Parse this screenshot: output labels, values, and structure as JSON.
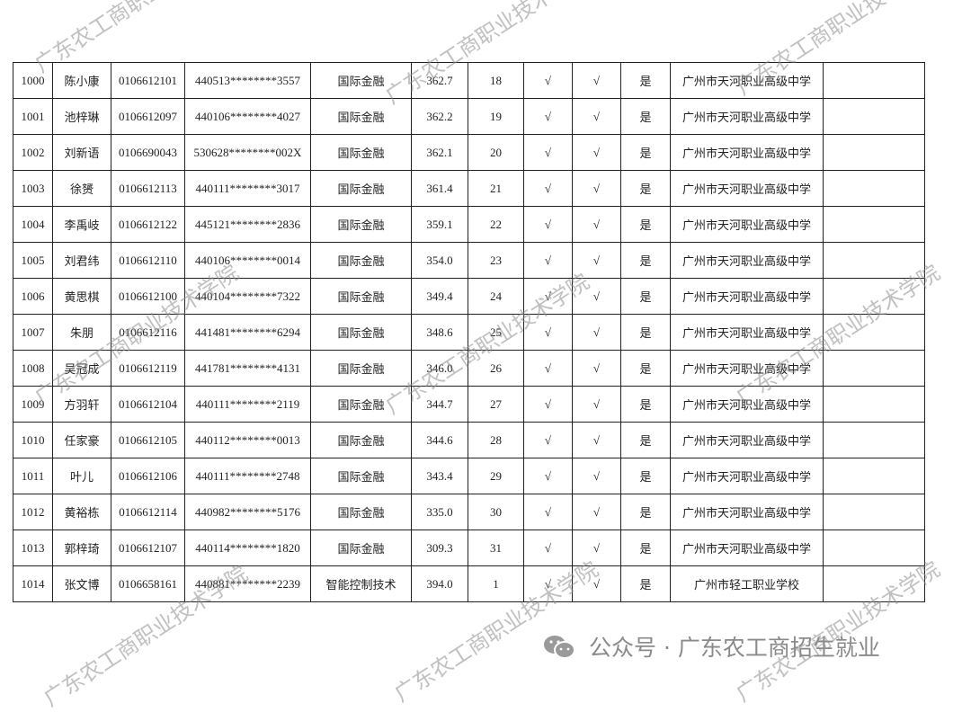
{
  "table": {
    "rows": [
      [
        "1000",
        "陈小康",
        "0106612101",
        "440513********3557",
        "国际金融",
        "362.7",
        "18",
        "√",
        "√",
        "是",
        "广州市天河职业高级中学"
      ],
      [
        "1001",
        "池梓琳",
        "0106612097",
        "440106********4027",
        "国际金融",
        "362.2",
        "19",
        "√",
        "√",
        "是",
        "广州市天河职业高级中学"
      ],
      [
        "1002",
        "刘新语",
        "0106690043",
        "530628********002X",
        "国际金融",
        "362.1",
        "20",
        "√",
        "√",
        "是",
        "广州市天河职业高级中学"
      ],
      [
        "1003",
        "徐赟",
        "0106612113",
        "440111********3017",
        "国际金融",
        "361.4",
        "21",
        "√",
        "√",
        "是",
        "广州市天河职业高级中学"
      ],
      [
        "1004",
        "李禹岐",
        "0106612122",
        "445121********2836",
        "国际金融",
        "359.1",
        "22",
        "√",
        "√",
        "是",
        "广州市天河职业高级中学"
      ],
      [
        "1005",
        "刘君纬",
        "0106612110",
        "440106********0014",
        "国际金融",
        "354.0",
        "23",
        "√",
        "√",
        "是",
        "广州市天河职业高级中学"
      ],
      [
        "1006",
        "黄思棋",
        "0106612100",
        "440104********7322",
        "国际金融",
        "349.4",
        "24",
        "√",
        "√",
        "是",
        "广州市天河职业高级中学"
      ],
      [
        "1007",
        "朱朋",
        "0106612116",
        "441481********6294",
        "国际金融",
        "348.6",
        "25",
        "√",
        "√",
        "是",
        "广州市天河职业高级中学"
      ],
      [
        "1008",
        "吴冠成",
        "0106612119",
        "441781********4131",
        "国际金融",
        "346.0",
        "26",
        "√",
        "√",
        "是",
        "广州市天河职业高级中学"
      ],
      [
        "1009",
        "方羽轩",
        "0106612104",
        "440111********2119",
        "国际金融",
        "344.7",
        "27",
        "√",
        "√",
        "是",
        "广州市天河职业高级中学"
      ],
      [
        "1010",
        "任家豪",
        "0106612105",
        "440112********0013",
        "国际金融",
        "344.6",
        "28",
        "√",
        "√",
        "是",
        "广州市天河职业高级中学"
      ],
      [
        "1011",
        "叶儿",
        "0106612106",
        "440111********2748",
        "国际金融",
        "343.4",
        "29",
        "√",
        "√",
        "是",
        "广州市天河职业高级中学"
      ],
      [
        "1012",
        "黄裕栋",
        "0106612114",
        "440982********5176",
        "国际金融",
        "335.0",
        "30",
        "√",
        "√",
        "是",
        "广州市天河职业高级中学"
      ],
      [
        "1013",
        "郭梓琦",
        "0106612107",
        "440114********1820",
        "国际金融",
        "309.3",
        "31",
        "√",
        "√",
        "是",
        "广州市天河职业高级中学"
      ],
      [
        "1014",
        "张文博",
        "0106658161",
        "440881********2239",
        "智能控制技术",
        "394.0",
        "1",
        "√",
        "√",
        "是",
        "广州市轻工职业学校"
      ]
    ]
  },
  "watermark": "广东农工商职业技术学院",
  "footer": "公众号 · 广东农工商招生就业"
}
